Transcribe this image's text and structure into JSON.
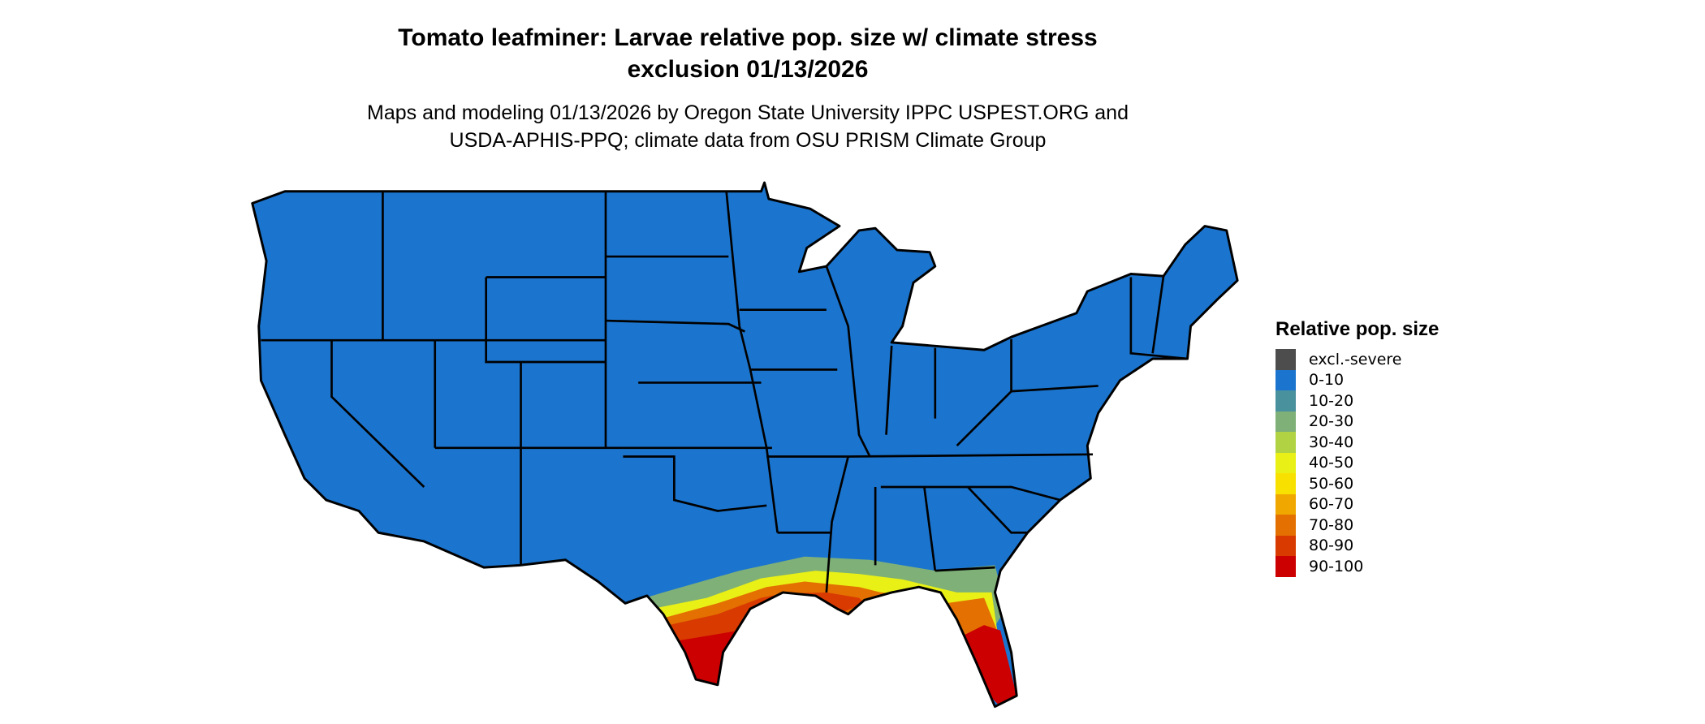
{
  "title_line1": "Tomato leafminer: Larvae relative pop. size w/ climate stress",
  "title_line2": "exclusion 01/13/2026",
  "subtitle_line1": "Maps and modeling 01/13/2026 by Oregon State University IPPC USPEST.ORG and",
  "subtitle_line2": "USDA-APHIS-PPQ; climate data from OSU PRISM Climate Group",
  "map": {
    "region": "Contiguous United States",
    "base_color": "#1b75cf",
    "border_color": "#000000"
  },
  "legend": {
    "title": "Relative pop. size",
    "items": [
      {
        "label": "excl.-severe",
        "color": "#4d4d4d"
      },
      {
        "label": "0-10",
        "color": "#1b75cf"
      },
      {
        "label": "10-20",
        "color": "#4a919e"
      },
      {
        "label": "20-30",
        "color": "#7fb077"
      },
      {
        "label": "30-40",
        "color": "#b0d243"
      },
      {
        "label": "40-50",
        "color": "#e8f016"
      },
      {
        "label": "50-60",
        "color": "#f8e000"
      },
      {
        "label": "60-70",
        "color": "#f0a800"
      },
      {
        "label": "70-80",
        "color": "#e37000"
      },
      {
        "label": "80-90",
        "color": "#d83a00"
      },
      {
        "label": "90-100",
        "color": "#cc0000"
      }
    ]
  }
}
